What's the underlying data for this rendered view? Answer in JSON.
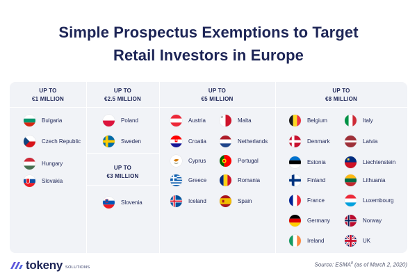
{
  "title_line1": "Simple Prospectus Exemptions to Target",
  "title_line2": "Retail Investors in Europe",
  "columns": {
    "c1": {
      "heading": "UP TO\n€1 MILLION",
      "countries": [
        {
          "name": "Bulgaria",
          "flag": "bulgaria"
        },
        {
          "name": "Czech Republic",
          "flag": "czech"
        },
        {
          "name": "Hungary",
          "flag": "hungary"
        },
        {
          "name": "Slovakia",
          "flag": "slovakia"
        }
      ]
    },
    "c2a": {
      "heading": "UP TO\n€2.5 MILLION",
      "countries": [
        {
          "name": "Poland",
          "flag": "poland"
        },
        {
          "name": "Sweden",
          "flag": "sweden"
        }
      ]
    },
    "c2b": {
      "heading": "UP TO\n€3 MILLION",
      "countries": [
        {
          "name": "Slovenia",
          "flag": "slovenia"
        }
      ]
    },
    "c3": {
      "heading": "UP TO\n€5 MILLION",
      "countries": [
        {
          "name": "Austria",
          "flag": "austria"
        },
        {
          "name": "Croatia",
          "flag": "croatia"
        },
        {
          "name": "Cyprus",
          "flag": "cyprus"
        },
        {
          "name": "Greece",
          "flag": "greece"
        },
        {
          "name": "Iceland",
          "flag": "iceland"
        },
        {
          "name": "Malta",
          "flag": "malta"
        },
        {
          "name": "Netherlands",
          "flag": "netherlands"
        },
        {
          "name": "Portugal",
          "flag": "portugal"
        },
        {
          "name": "Romania",
          "flag": "romania"
        },
        {
          "name": "Spain",
          "flag": "spain"
        }
      ]
    },
    "c4": {
      "heading": "UP TO\n€8 MILLION",
      "countries": [
        {
          "name": "Belgium",
          "flag": "belgium"
        },
        {
          "name": "Denmark",
          "flag": "denmark"
        },
        {
          "name": "Estonia",
          "flag": "estonia"
        },
        {
          "name": "Finland",
          "flag": "finland"
        },
        {
          "name": "France",
          "flag": "france"
        },
        {
          "name": "Germany",
          "flag": "germany"
        },
        {
          "name": "Ireland",
          "flag": "ireland"
        },
        {
          "name": "Italy",
          "flag": "italy"
        },
        {
          "name": "Latvia",
          "flag": "latvia"
        },
        {
          "name": "Liechtenstein",
          "flag": "liechtenstein"
        },
        {
          "name": "Lithuania",
          "flag": "lithuania"
        },
        {
          "name": "Luxembourg",
          "flag": "luxembourg"
        },
        {
          "name": "Norway",
          "flag": "norway"
        },
        {
          "name": "UK",
          "flag": "uk"
        }
      ]
    }
  },
  "logo": {
    "name": "tokeny",
    "sub": "SOLUTIONS"
  },
  "source": {
    "text": "Source: ESMA",
    "sup": "8",
    "date": " (as of March 2, 2020)"
  }
}
